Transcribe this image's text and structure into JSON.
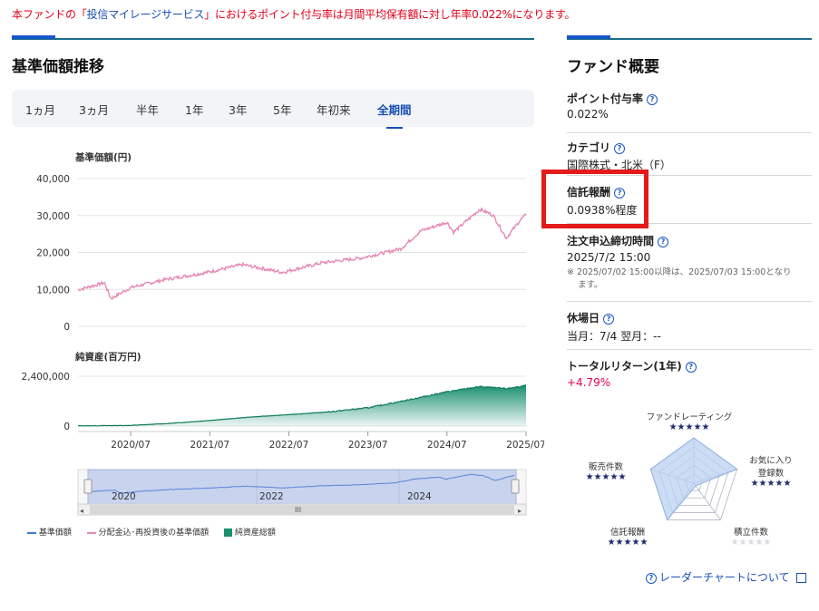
{
  "notice": {
    "pre": "本ファンドの「",
    "link": "投信マイレージサービス",
    "post": "」におけるポイント付与率は月間平均保有額に対し年率0.022%になります。"
  },
  "chart_section": {
    "title": "基準価額推移",
    "tabs": [
      "1ヵ月",
      "3ヵ月",
      "半年",
      "1年",
      "3年",
      "5年",
      "年初来",
      "全期間"
    ],
    "active_tab": "全期間"
  },
  "chart_data": [
    {
      "type": "line",
      "title": "基準価額(円)",
      "yticks": [
        "40,000",
        "30,000",
        "20,000",
        "10,000",
        "0"
      ],
      "ylim": [
        0,
        40000
      ],
      "series": [
        {
          "name": "分配金込・再投資後の基準価額",
          "color": "#e589b6",
          "x": [
            "2019/11",
            "2020/03",
            "2020/04",
            "2020/07",
            "2020/12",
            "2021/06",
            "2021/12",
            "2022/06",
            "2022/12",
            "2023/06",
            "2023/12",
            "2024/03",
            "2024/07",
            "2024/08",
            "2024/12",
            "2025/02",
            "2025/04",
            "2025/06",
            "2025/07"
          ],
          "values": [
            9900,
            11800,
            7500,
            10500,
            12600,
            14400,
            16700,
            14600,
            17200,
            18500,
            21000,
            25800,
            28200,
            25500,
            31700,
            30100,
            23900,
            28500,
            30300
          ]
        }
      ]
    },
    {
      "type": "area",
      "title": "純資産(百万円)",
      "yticks": [
        "2,400,000",
        "0"
      ],
      "ylim": [
        0,
        2400000
      ],
      "xticks": [
        "2020/07",
        "2021/07",
        "2022/07",
        "2023/07",
        "2024/07",
        "2025/07"
      ],
      "series": [
        {
          "name": "純資産総額",
          "color": "#1a9070",
          "x": [
            "2019/11",
            "2020/07",
            "2021/01",
            "2021/07",
            "2022/01",
            "2022/07",
            "2023/01",
            "2023/07",
            "2024/01",
            "2024/07",
            "2024/12",
            "2025/04",
            "2025/07"
          ],
          "values": [
            10000,
            30000,
            130000,
            270000,
            430000,
            550000,
            680000,
            880000,
            1250000,
            1650000,
            1900000,
            1800000,
            1950000
          ]
        }
      ]
    }
  ],
  "navigator": {
    "labels": [
      "2020",
      "2022",
      "2024"
    ],
    "scroll_mark": "III"
  },
  "legend": [
    {
      "label": "基準価額",
      "color": "#3a78d8"
    },
    {
      "label": "分配金込･再投資後の基準価額",
      "color": "#e589b6"
    },
    {
      "label": "純資産総額",
      "color": "#1a9070"
    }
  ],
  "overview": {
    "title": "ファンド概要",
    "items": [
      {
        "label": "ポイント付与率",
        "value": "0.022%"
      },
      {
        "label": "カテゴリ",
        "value": "国際株式・北米（F）"
      },
      {
        "label": "信託報酬",
        "value": "0.0938%程度"
      },
      {
        "label": "注文申込締切時間",
        "value": "2025/7/2 15:00",
        "note1": "※ 2025/07/02 15:00以降は、2025/07/03 15:00となり",
        "note2": "ます。"
      },
      {
        "label": "休場日",
        "value": "当月：7/4  翌月：--"
      },
      {
        "label": "トータルリターン(1年)",
        "value": "+4.79%",
        "value_color": "#e2004f"
      }
    ]
  },
  "radar": {
    "axes": [
      {
        "label": "ファンドレーティング",
        "stars": 5
      },
      {
        "label": "お気に入り",
        "label2": "登録数",
        "stars": 5
      },
      {
        "label": "積立件数",
        "stars": 0
      },
      {
        "label": "信託報酬",
        "stars": 5
      },
      {
        "label": "販売件数",
        "stars": 5
      }
    ],
    "star_full": "★★★★★",
    "star_empty": "★★★★★",
    "link": "レーダーチャートについて"
  }
}
